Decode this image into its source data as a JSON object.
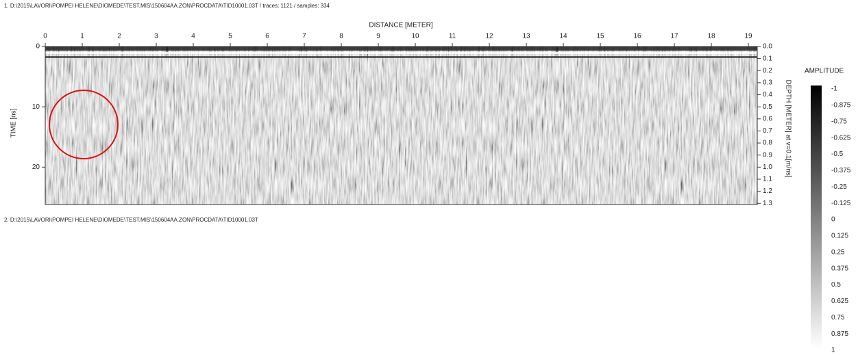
{
  "panel1": {
    "caption": "1. D:\\2015\\LAVORI\\POMPEI HELENE\\DIOMEDE\\TEST.MIS\\150604AA.ZON\\PROCDATA\\TID10001.03T / traces: 1121 / samples: 334",
    "x_axis": {
      "label": "DISTANCE [METER]",
      "lim": [
        0,
        19.24
      ],
      "ticks": [
        0,
        1,
        2,
        3,
        4,
        5,
        6,
        7,
        8,
        9,
        10,
        11,
        12,
        13,
        14,
        15,
        16,
        17,
        18,
        19
      ]
    },
    "y_axis": {
      "label": "TIME [ns]",
      "lim": [
        0,
        26.2
      ],
      "ticks": [
        0,
        10,
        20
      ]
    },
    "y2_axis": {
      "label": "DEPTH [METER] at v=0.1[m/ns]",
      "lim": [
        0,
        1.31
      ],
      "ticks": [
        {
          "value": 0,
          "label": "0.0"
        },
        {
          "value": 0.1,
          "label": "0.1"
        },
        {
          "value": 0.2,
          "label": "0.2"
        },
        {
          "value": 0.3,
          "label": "0.3"
        },
        {
          "value": 0.4,
          "label": "0.4"
        },
        {
          "value": 0.5,
          "label": "0.5"
        },
        {
          "value": 0.6,
          "label": "0.6"
        },
        {
          "value": 0.7,
          "label": "0.7"
        },
        {
          "value": 0.8,
          "label": "0.8"
        },
        {
          "value": 0.9,
          "label": "0.9"
        },
        {
          "value": 1,
          "label": "1.0"
        },
        {
          "value": 1.1,
          "label": "1.1"
        },
        {
          "value": 1.2,
          "label": "1.2"
        },
        {
          "value": 1.3,
          "label": "1.3"
        }
      ]
    }
  },
  "panel2": {
    "caption": "2. D:\\2015\\LAVORI\\POMPEI HELENE\\DIOMEDE\\TEST.MIS\\150604AA.ZON\\PROCDATA\\TID10001.03T"
  },
  "colorbar": {
    "title": "AMPLITUDE",
    "lim": [
      -1,
      1
    ],
    "ticks": [
      -1,
      -0.875,
      -0.75,
      -0.625,
      -0.5,
      -0.375,
      -0.25,
      -0.125,
      0,
      0.125,
      0.25,
      0.375,
      0.5,
      0.625,
      0.75,
      0.875,
      1
    ]
  }
}
